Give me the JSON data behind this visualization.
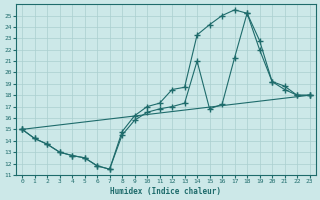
{
  "xlabel": "Humidex (Indice chaleur)",
  "bg_color": "#cce8e8",
  "line_color": "#1e6b6b",
  "grid_color": "#aacfcf",
  "xlim": [
    -0.5,
    23.5
  ],
  "ylim": [
    11,
    26
  ],
  "xticks": [
    0,
    1,
    2,
    3,
    4,
    5,
    6,
    7,
    8,
    9,
    10,
    11,
    12,
    13,
    14,
    15,
    16,
    17,
    18,
    19,
    20,
    21,
    22,
    23
  ],
  "yticks": [
    11,
    12,
    13,
    14,
    15,
    16,
    17,
    18,
    19,
    20,
    21,
    22,
    23,
    24,
    25
  ],
  "line1_x": [
    0,
    1,
    2,
    3,
    4,
    5,
    6,
    7,
    8,
    9,
    10,
    11,
    12,
    13,
    14,
    15,
    16,
    17,
    18,
    19,
    20,
    21,
    22,
    23
  ],
  "line1_y": [
    15,
    14.2,
    13.7,
    13.0,
    12.7,
    12.5,
    11.8,
    11.5,
    14.8,
    16.2,
    17.0,
    17.3,
    18.5,
    18.7,
    23.3,
    24.2,
    25.0,
    25.5,
    25.2,
    22.8,
    19.2,
    18.8,
    18.0,
    18.0
  ],
  "line2_x": [
    0,
    1,
    2,
    3,
    4,
    5,
    6,
    7,
    8,
    9,
    10,
    11,
    12,
    13,
    14,
    15,
    16,
    17,
    18,
    19,
    20,
    21,
    22,
    23
  ],
  "line2_y": [
    15,
    14.2,
    13.7,
    13.0,
    12.7,
    12.5,
    11.8,
    11.5,
    14.5,
    15.8,
    16.5,
    16.8,
    17.0,
    17.3,
    21.0,
    16.8,
    17.2,
    21.3,
    25.2,
    22.0,
    19.2,
    18.5,
    18.0,
    18.0
  ],
  "line3_x": [
    0,
    23
  ],
  "line3_y": [
    15,
    18.0
  ]
}
